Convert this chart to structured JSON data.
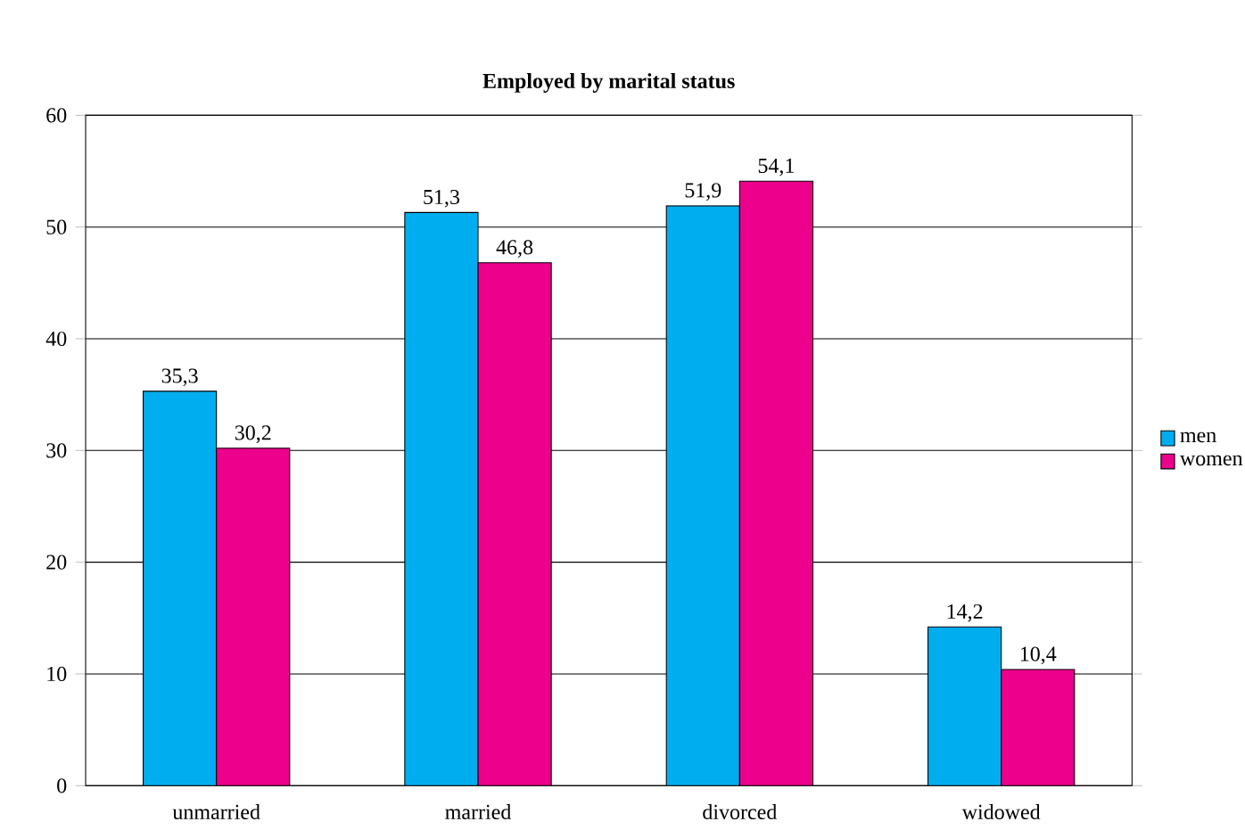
{
  "chart_data": {
    "type": "bar",
    "title": "Employed by marital status",
    "categories": [
      "unmarried",
      "married",
      "divorced",
      "widowed"
    ],
    "series": [
      {
        "name": "men",
        "color": "#00aeef",
        "values": [
          35.3,
          51.3,
          51.9,
          14.2
        ],
        "value_labels": [
          "35,3",
          "51,3",
          "51,9",
          "14,2"
        ]
      },
      {
        "name": "women",
        "color": "#ec008c",
        "values": [
          30.2,
          46.8,
          54.1,
          10.4
        ],
        "value_labels": [
          "30,2",
          "46,8",
          "54,1",
          "10,4"
        ]
      }
    ],
    "ylim": [
      0,
      60
    ],
    "yticks": [
      0,
      10,
      20,
      30,
      40,
      50,
      60
    ],
    "grid": "y",
    "legend": "right"
  }
}
